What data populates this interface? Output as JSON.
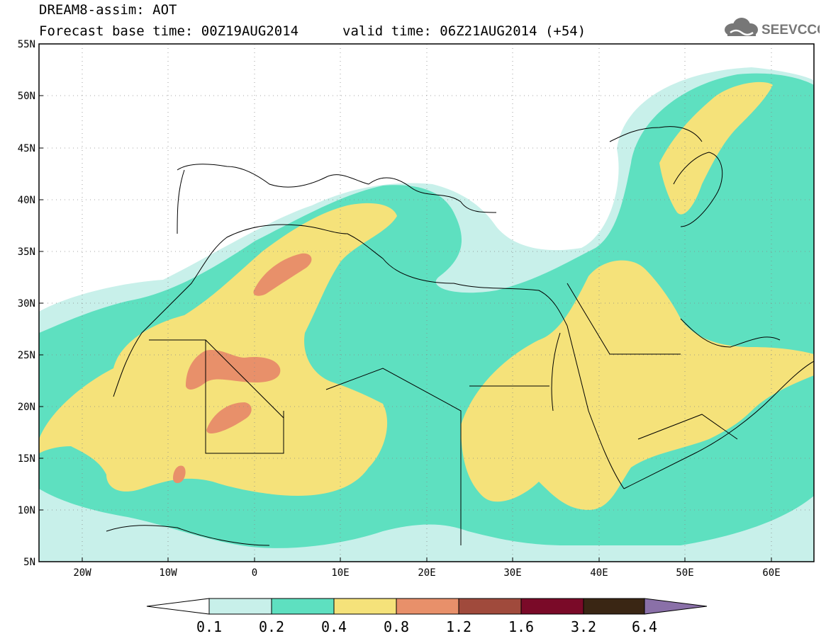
{
  "header": {
    "title": "DREAM8-assim: AOT",
    "base_time": "Forecast base time: 00Z19AUG2014",
    "valid_time": "valid time: 06Z21AUG2014 (+54)",
    "logo_text": "SEEVCCC"
  },
  "map": {
    "lon_range": [
      -25,
      65
    ],
    "lat_range": [
      5,
      55
    ],
    "lat_labels": [
      "55N",
      "50N",
      "45N",
      "40N",
      "35N",
      "30N",
      "25N",
      "20N",
      "15N",
      "10N",
      "5N"
    ],
    "lon_labels": [
      "20W",
      "10W",
      "0",
      "10E",
      "20E",
      "30E",
      "40E",
      "50E",
      "60E"
    ]
  },
  "legend": {
    "levels": [
      "0.1",
      "0.2",
      "0.4",
      "0.8",
      "1.2",
      "1.6",
      "3.2",
      "6.4"
    ],
    "colors": [
      "#ffffff",
      "#c8f0ea",
      "#5ee0c0",
      "#f5e27a",
      "#e8906a",
      "#a04a3c",
      "#7a0a28",
      "#3a2614",
      "#8a70a8"
    ]
  },
  "colors": {
    "band_02": "#5ee0c0",
    "band_01": "#c8f0ea",
    "band_04": "#f5e27a",
    "band_08": "#e8906a",
    "border": "#000000"
  }
}
